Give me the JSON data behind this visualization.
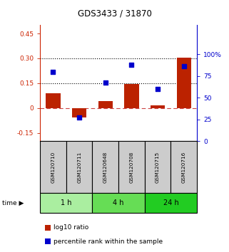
{
  "title": "GDS3433 / 31870",
  "samples": [
    "GSM120710",
    "GSM120711",
    "GSM120648",
    "GSM120708",
    "GSM120715",
    "GSM120716"
  ],
  "log10_ratio": [
    0.09,
    -0.055,
    0.04,
    0.145,
    0.015,
    0.305
  ],
  "percentile_rank": [
    80,
    27,
    67,
    88,
    60,
    86
  ],
  "group_boundaries": [
    {
      "start": 0,
      "end": 1,
      "label": "1 h",
      "color": "#aaeea0"
    },
    {
      "start": 2,
      "end": 3,
      "label": "4 h",
      "color": "#66dd55"
    },
    {
      "start": 4,
      "end": 5,
      "label": "24 h",
      "color": "#22cc22"
    }
  ],
  "ylim_left": [
    -0.2,
    0.5
  ],
  "ylim_right": [
    0,
    133.33
  ],
  "yticks_left": [
    -0.15,
    0,
    0.15,
    0.3,
    0.45
  ],
  "yticks_left_labels": [
    "-0.15",
    "0",
    "0.15",
    "0.30",
    "0.45"
  ],
  "yticks_right": [
    0,
    25,
    50,
    75,
    100
  ],
  "yticks_right_labels": [
    "0",
    "25",
    "50",
    "75",
    "100%"
  ],
  "hlines": [
    0.15,
    0.3
  ],
  "bar_color": "#bb2200",
  "dot_color": "#0000cc",
  "zero_line_color": "#cc4444",
  "left_label_color": "#cc2200",
  "right_label_color": "#0000cc",
  "bar_width": 0.55,
  "sample_box_color": "#cccccc",
  "legend_label1": "log10 ratio",
  "legend_label2": "percentile rank within the sample"
}
